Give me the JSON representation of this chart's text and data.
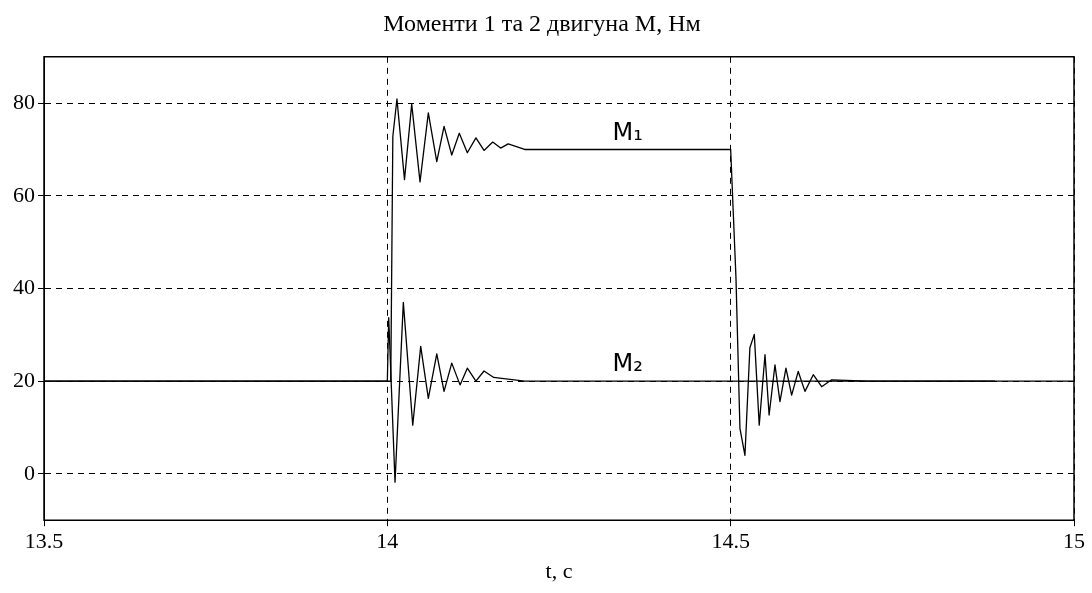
{
  "chart_data": {
    "type": "line",
    "title": "Моменти 1 та 2 двигуна M, Нм",
    "xlabel": "t, c",
    "xlim": [
      13.5,
      15
    ],
    "xticks": [
      13.5,
      14,
      14.5,
      15
    ],
    "ylim": [
      -10,
      90
    ],
    "yticks": [
      0,
      20,
      40,
      60,
      80
    ],
    "grid": true,
    "line_style": "solid",
    "marker": "none",
    "series": [
      {
        "name": "M₁",
        "color": "#000000",
        "x": [
          13.5,
          14.0,
          14.005,
          14.008,
          14.014,
          14.025,
          14.0355,
          14.0476,
          14.0597,
          14.072,
          14.0826,
          14.0938,
          14.1048,
          14.1165,
          14.129,
          14.1408,
          14.1535,
          14.165,
          14.176,
          14.2,
          14.5,
          14.5077,
          14.5135,
          14.5208,
          14.528,
          14.5344,
          14.5416,
          14.55,
          14.556,
          14.5645,
          14.5718,
          14.5805,
          14.5888,
          14.5984,
          14.6082,
          14.6203,
          14.6325,
          14.647,
          14.7,
          14.885
        ],
        "values": [
          20,
          20,
          20,
          72.8,
          80.9,
          63.5,
          79.8,
          63,
          77.9,
          67.4,
          75,
          68.8,
          73.5,
          69.3,
          72.5,
          69.8,
          71.6,
          70.3,
          71.2,
          70,
          70,
          42.4,
          9.8,
          4,
          27.2,
          30.1,
          10.5,
          25.7,
          12.7,
          23.5,
          15.6,
          22.8,
          17,
          22.1,
          17.8,
          21.4,
          18.8,
          20.3,
          20,
          20
        ]
      },
      {
        "name": "M₂",
        "color": "#000000",
        "x": [
          13.5,
          14.0,
          14.002,
          14.0112,
          14.0233,
          14.037,
          14.0486,
          14.0597,
          14.072,
          14.0826,
          14.0938,
          14.1059,
          14.1165,
          14.129,
          14.1408,
          14.155,
          14.2,
          14.5,
          14.7,
          14.885,
          15.0
        ],
        "values": [
          20,
          20,
          33.7,
          -1.8,
          37,
          10.5,
          27.5,
          16.3,
          25.9,
          17.8,
          23.9,
          19.2,
          22.8,
          20,
          22.2,
          20.8,
          20,
          20,
          20,
          20,
          20
        ]
      }
    ]
  }
}
